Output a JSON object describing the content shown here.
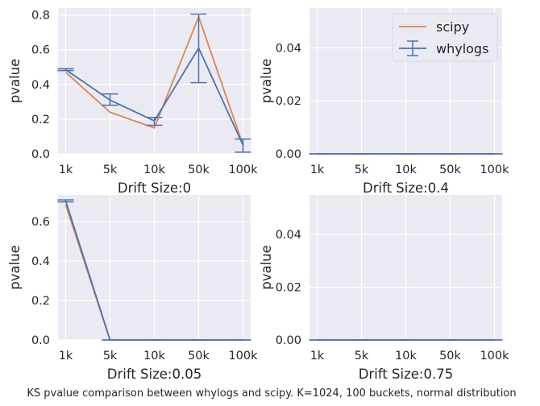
{
  "chart_data": [
    {
      "type": "line",
      "xlabel": "Drift Size:0",
      "ylabel": "pvalue",
      "categories": [
        "1k",
        "5k",
        "10k",
        "50k",
        "100k"
      ],
      "ylim": [
        0,
        0.84
      ],
      "yticks": [
        "0.0",
        "0.2",
        "0.4",
        "0.6",
        "0.8"
      ],
      "grid": true,
      "series": [
        {
          "name": "scipy",
          "values": [
            0.47,
            0.24,
            0.15,
            0.79,
            0.05
          ]
        },
        {
          "name": "whylogs",
          "values": [
            0.485,
            0.31,
            0.19,
            0.61,
            0.05
          ],
          "error_low": [
            0.48,
            0.28,
            0.165,
            0.41,
            0.01
          ],
          "error_high": [
            0.49,
            0.345,
            0.21,
            0.805,
            0.085
          ]
        }
      ]
    },
    {
      "type": "line",
      "xlabel": "Drift Size:0.4",
      "ylabel": "pvalue",
      "categories": [
        "1k",
        "5k",
        "10k",
        "50k",
        "100k"
      ],
      "ylim": [
        0,
        0.055
      ],
      "yticks": [
        "0.00",
        "0.02",
        "0.04"
      ],
      "grid": true,
      "legend": "top-right",
      "series": [
        {
          "name": "scipy",
          "values": [
            0,
            0,
            0,
            0,
            0
          ]
        },
        {
          "name": "whylogs",
          "values": [
            0,
            0,
            0,
            0,
            0
          ],
          "error_low": [
            0,
            0,
            0,
            0,
            0
          ],
          "error_high": [
            0,
            0,
            0,
            0,
            0
          ]
        }
      ]
    },
    {
      "type": "line",
      "xlabel": "Drift Size:0.05",
      "ylabel": "pvalue",
      "categories": [
        "1k",
        "5k",
        "10k",
        "50k",
        "100k"
      ],
      "ylim": [
        0,
        0.735
      ],
      "yticks": [
        "0.0",
        "0.2",
        "0.4",
        "0.6"
      ],
      "grid": true,
      "series": [
        {
          "name": "scipy",
          "values": [
            0.685,
            0,
            0,
            0,
            0
          ]
        },
        {
          "name": "whylogs",
          "values": [
            0.705,
            0,
            0,
            0,
            0
          ],
          "error_low": [
            0.7,
            0,
            0,
            0,
            0
          ],
          "error_high": [
            0.71,
            0,
            0,
            0,
            0
          ]
        }
      ]
    },
    {
      "type": "line",
      "xlabel": "Drift Size:0.75",
      "ylabel": "pvalue",
      "categories": [
        "1k",
        "5k",
        "10k",
        "50k",
        "100k"
      ],
      "ylim": [
        0,
        0.055
      ],
      "yticks": [
        "0.00",
        "0.02",
        "0.04"
      ],
      "grid": true,
      "series": [
        {
          "name": "scipy",
          "values": [
            0,
            0,
            0,
            0,
            0
          ]
        },
        {
          "name": "whylogs",
          "values": [
            0,
            0,
            0,
            0,
            0
          ],
          "error_low": [
            0,
            0,
            0,
            0,
            0
          ],
          "error_high": [
            0,
            0,
            0,
            0,
            0
          ]
        }
      ]
    }
  ],
  "caption": "KS pvalue comparison between whylogs and scipy. K=1024, 100 buckets, normal distribution",
  "legend": {
    "entries": [
      "scipy",
      "whylogs"
    ]
  },
  "colors": {
    "scipy": "#dd8452",
    "whylogs": "#4c72b0",
    "panel_bg": "#eaeaf2",
    "grid": "#ffffff"
  }
}
